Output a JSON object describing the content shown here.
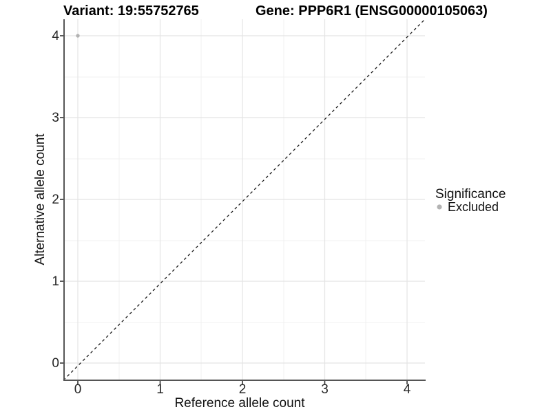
{
  "chart_data": {
    "type": "scatter",
    "titles": {
      "variant": "Variant: 19:55752765",
      "gene": "Gene: PPP6R1 (ENSG00000105063)"
    },
    "xlabel": "Reference allele count",
    "ylabel": "Alternative allele count",
    "x_ticks": [
      "0",
      "1",
      "2",
      "3",
      "4"
    ],
    "y_ticks": [
      "0",
      "1",
      "2",
      "3",
      "4"
    ],
    "xlim": [
      -0.2,
      4.2
    ],
    "ylim": [
      -0.2,
      4.2
    ],
    "grid": "major and minor, light gray, on white panel",
    "points": [
      {
        "x": 0,
        "y": 4,
        "significance": "Excluded"
      }
    ],
    "identity_line": {
      "style": "dashed",
      "slope": 1,
      "intercept": 0
    },
    "legend": {
      "position": "right",
      "title": "Significance",
      "items": [
        {
          "label": "Excluded",
          "color": "#b3b3b3"
        }
      ]
    },
    "colors": {
      "excluded_point": "#b3b3b3",
      "grid_major": "#e4e4e4",
      "grid_minor": "#f1f1f1",
      "axis_line": "#555555",
      "tick_mark": "#333333",
      "dashed_line": "#1a1a1a"
    }
  }
}
